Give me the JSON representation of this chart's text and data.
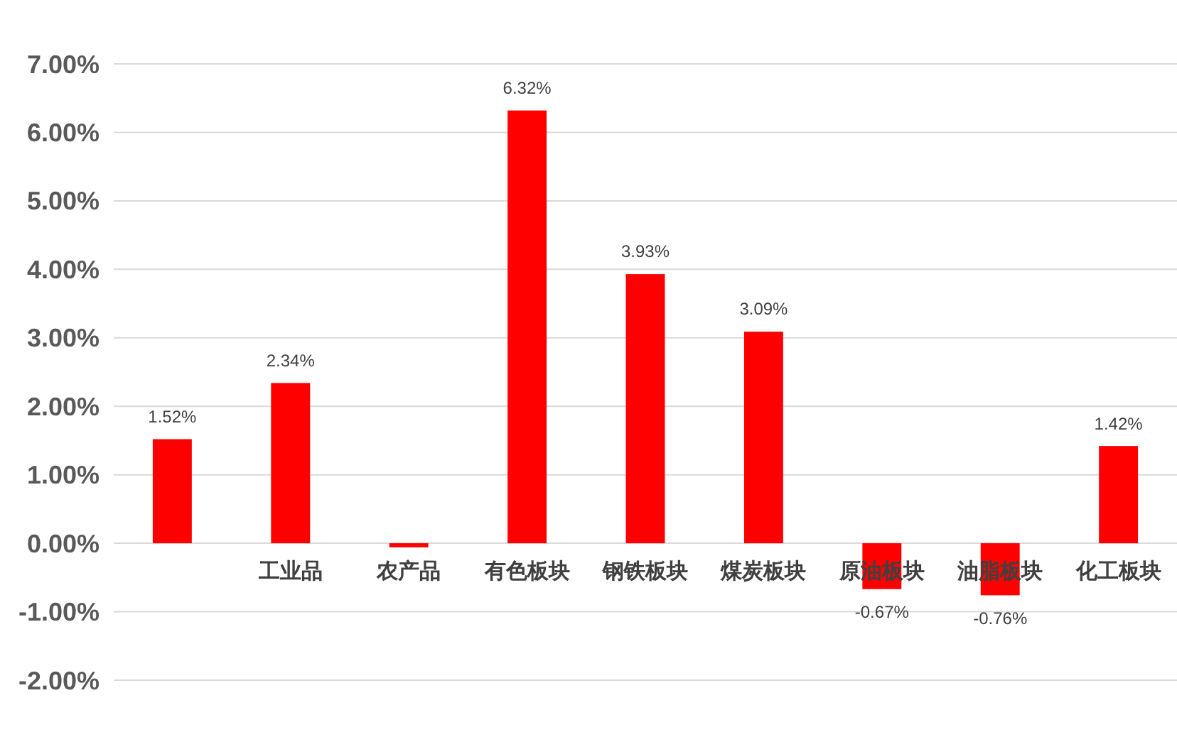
{
  "chart_data": {
    "type": "bar",
    "categories": [
      null,
      "工业品",
      "农产品",
      "有色板块",
      "钢铁板块",
      "煤炭板块",
      "原油板块",
      "油脂板块",
      "化工板块"
    ],
    "values": [
      1.52,
      2.34,
      -0.06,
      6.32,
      3.93,
      3.09,
      -0.67,
      -0.76,
      1.42
    ],
    "value_labels": [
      "1.52%",
      "2.34%",
      null,
      "6.32%",
      "3.93%",
      "3.09%",
      "-0.67%",
      "-0.76%",
      "1.42%"
    ],
    "color": "#ff0000",
    "ylim": [
      -2,
      7
    ],
    "yticks": [
      {
        "value": -2,
        "label": "-2.00%"
      },
      {
        "value": -1,
        "label": "-1.00%"
      },
      {
        "value": 0,
        "label": "0.00%"
      },
      {
        "value": 1,
        "label": "1.00%"
      },
      {
        "value": 2,
        "label": "2.00%"
      },
      {
        "value": 3,
        "label": "3.00%"
      },
      {
        "value": 4,
        "label": "4.00%"
      },
      {
        "value": 5,
        "label": "5.00%"
      },
      {
        "value": 6,
        "label": "6.00%"
      },
      {
        "value": 7,
        "label": "7.00%"
      }
    ],
    "grid": "y"
  }
}
